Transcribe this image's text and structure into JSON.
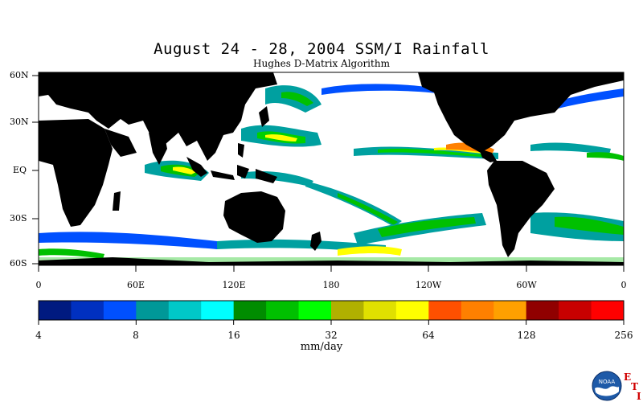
{
  "header": {
    "title": "August 24 - 28, 2004 SSM/I Rainfall",
    "subtitle": "Hughes D-Matrix Algorithm"
  },
  "map": {
    "lat_labels": [
      "60N",
      "30N",
      "EQ",
      "30S",
      "60S"
    ],
    "lon_labels": [
      "0",
      "60E",
      "120E",
      "180",
      "120W",
      "60W",
      "0"
    ],
    "colors": {
      "land": "#000000",
      "ocean_no_rain": "#ffffff"
    }
  },
  "colorbar": {
    "bins": [
      "#001a80",
      "#0030c0",
      "#0050ff",
      "#009898",
      "#00c8c8",
      "#00ffff",
      "#008c00",
      "#00c000",
      "#00ff00",
      "#b0b000",
      "#e0e000",
      "#ffff00",
      "#ff5000",
      "#ff8000",
      "#ffa000",
      "#900000",
      "#c80000",
      "#ff0000"
    ],
    "tick_labels": [
      "4",
      "8",
      "16",
      "32",
      "64",
      "128",
      "256"
    ],
    "units": "mm/day"
  },
  "logos": {
    "noaa": "NOAA",
    "eti_letters": [
      "E",
      "T",
      "I"
    ]
  }
}
